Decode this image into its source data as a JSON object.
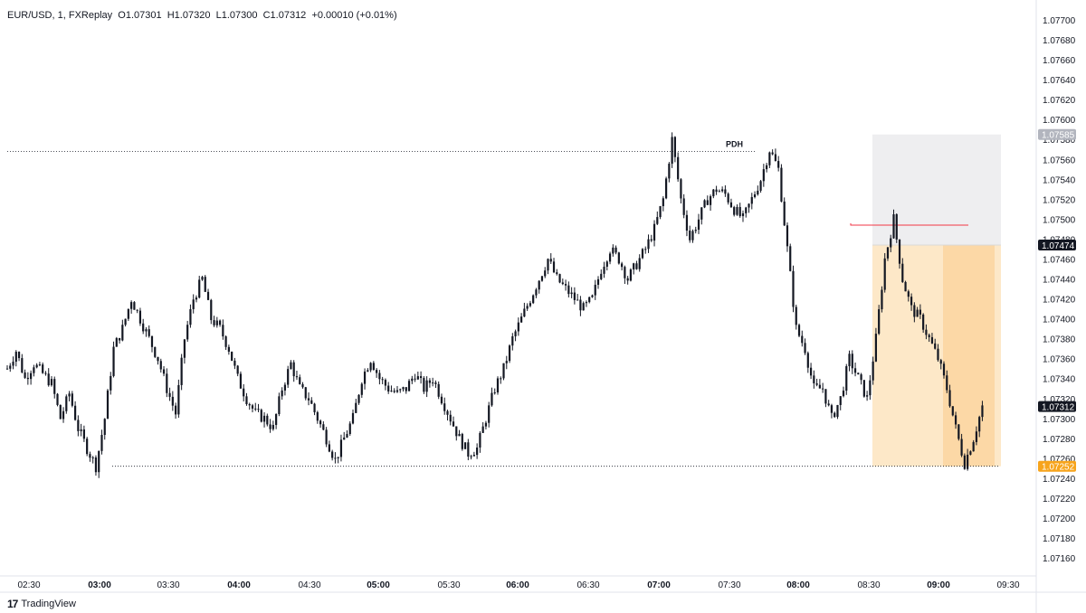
{
  "header": {
    "symbol": "EUR/USD, 1, FXReplay",
    "open": "O1.07301",
    "high": "H1.07320",
    "low": "L1.07300",
    "close": "C1.07312",
    "change": "+0.00010 (+0.01%)"
  },
  "footer": {
    "brand": "TradingView",
    "brand_icon": "tradingview-logo-icon"
  },
  "colors": {
    "candle": "#131722",
    "grid": "#e6e6e6",
    "stop_zone": "#eeeef0",
    "target_zone": "#fde8c8",
    "target_zone_dark": "#fcd8a6",
    "entry_line": "#f23645",
    "current_badge": "#131722",
    "low_badge": "#f7a41c",
    "high_badge": "#b2b5be"
  },
  "chart_data": {
    "type": "candlestick",
    "title": "EUR/USD, 1, FXReplay",
    "ylim": [
      1.0715,
      1.0771
    ],
    "y_ticks": [
      "1.07700",
      "1.07680",
      "1.07660",
      "1.07640",
      "1.07620",
      "1.07600",
      "1.07580",
      "1.07560",
      "1.07540",
      "1.07520",
      "1.07500",
      "1.07480",
      "1.07460",
      "1.07440",
      "1.07420",
      "1.07400",
      "1.07380",
      "1.07360",
      "1.07340",
      "1.07320",
      "1.07300",
      "1.07280",
      "1.07260",
      "1.07240",
      "1.07220",
      "1.07200",
      "1.07180",
      "1.07160"
    ],
    "x_ticks": [
      {
        "label": "02:30",
        "bold": false
      },
      {
        "label": "03:00",
        "bold": true
      },
      {
        "label": "03:30",
        "bold": false
      },
      {
        "label": "04:00",
        "bold": true
      },
      {
        "label": "04:30",
        "bold": false
      },
      {
        "label": "05:00",
        "bold": true
      },
      {
        "label": "05:30",
        "bold": false
      },
      {
        "label": "06:00",
        "bold": true
      },
      {
        "label": "06:30",
        "bold": false
      },
      {
        "label": "07:00",
        "bold": true
      },
      {
        "label": "07:30",
        "bold": false
      },
      {
        "label": "08:00",
        "bold": true
      },
      {
        "label": "08:30",
        "bold": false
      },
      {
        "label": "09:00",
        "bold": true
      },
      {
        "label": "09:30",
        "bold": false
      }
    ],
    "price_badges": [
      {
        "label": "1.07585",
        "value": 1.07585,
        "role": "high"
      },
      {
        "label": "1.07474",
        "value": 1.07474,
        "role": "current"
      },
      {
        "label": "1.07312",
        "value": 1.07312,
        "role": "current"
      },
      {
        "label": "1.07252",
        "value": 1.07252,
        "role": "low"
      }
    ],
    "annotations": {
      "pdh_label": "PDH",
      "pdh_price": 1.07568,
      "low_line_price": 1.07252,
      "entry_price": 1.07494,
      "zone_top": 1.07585,
      "zone_mid": 1.07474,
      "zone_bottom": 1.07252
    },
    "price_path": [
      [
        0,
        1.0735
      ],
      [
        3,
        1.07368
      ],
      [
        6,
        1.0734
      ],
      [
        9,
        1.07355
      ],
      [
        12,
        1.07345
      ],
      [
        15,
        1.07335
      ],
      [
        18,
        1.073
      ],
      [
        21,
        1.07325
      ],
      [
        24,
        1.0729
      ],
      [
        27,
        1.0727
      ],
      [
        30,
        1.07252
      ],
      [
        33,
        1.073
      ],
      [
        36,
        1.0737
      ],
      [
        39,
        1.0739
      ],
      [
        42,
        1.0742
      ],
      [
        45,
        1.074
      ],
      [
        48,
        1.0738
      ],
      [
        51,
        1.0736
      ],
      [
        54,
        1.0733
      ],
      [
        57,
        1.07305
      ],
      [
        60,
        1.0738
      ],
      [
        63,
        1.0742
      ],
      [
        66,
        1.0744
      ],
      [
        69,
        1.074
      ],
      [
        72,
        1.0739
      ],
      [
        75,
        1.0737
      ],
      [
        78,
        1.0734
      ],
      [
        81,
        1.0732
      ],
      [
        84,
        1.07305
      ],
      [
        87,
        1.073
      ],
      [
        90,
        1.0729
      ],
      [
        93,
        1.0733
      ],
      [
        96,
        1.07355
      ],
      [
        99,
        1.0733
      ],
      [
        102,
        1.0732
      ],
      [
        105,
        1.073
      ],
      [
        108,
        1.0728
      ],
      [
        111,
        1.07258
      ],
      [
        114,
        1.0728
      ],
      [
        117,
        1.073
      ],
      [
        120,
        1.0734
      ],
      [
        123,
        1.0736
      ],
      [
        126,
        1.0734
      ],
      [
        129,
        1.0733
      ],
      [
        132,
        1.07325
      ],
      [
        135,
        1.0733
      ],
      [
        138,
        1.07345
      ],
      [
        141,
        1.0733
      ],
      [
        144,
        1.0734
      ],
      [
        147,
        1.0732
      ],
      [
        150,
        1.073
      ],
      [
        153,
        1.0728
      ],
      [
        156,
        1.07265
      ],
      [
        159,
        1.0727
      ],
      [
        162,
        1.073
      ],
      [
        165,
        1.0733
      ],
      [
        168,
        1.0735
      ],
      [
        171,
        1.0738
      ],
      [
        174,
        1.074
      ],
      [
        177,
        1.0742
      ],
      [
        180,
        1.0744
      ],
      [
        183,
        1.0746
      ],
      [
        186,
        1.0744
      ],
      [
        189,
        1.0743
      ],
      [
        192,
        1.0742
      ],
      [
        195,
        1.0741
      ],
      [
        198,
        1.0742
      ],
      [
        201,
        1.0745
      ],
      [
        204,
        1.0747
      ],
      [
        207,
        1.0746
      ],
      [
        210,
        1.0744
      ],
      [
        213,
        1.07455
      ],
      [
        216,
        1.0747
      ],
      [
        219,
        1.0749
      ],
      [
        222,
        1.0752
      ],
      [
        225,
        1.0758
      ],
      [
        228,
        1.0752
      ],
      [
        231,
        1.0748
      ],
      [
        234,
        1.075
      ],
      [
        237,
        1.0752
      ],
      [
        240,
        1.0753
      ],
      [
        243,
        1.07525
      ],
      [
        246,
        1.0751
      ],
      [
        249,
        1.075
      ],
      [
        252,
        1.0752
      ],
      [
        255,
        1.0754
      ],
      [
        258,
        1.0757
      ],
      [
        261,
        1.0755
      ],
      [
        264,
        1.0747
      ],
      [
        267,
        1.0739
      ],
      [
        270,
        1.0737
      ],
      [
        273,
        1.0733
      ],
      [
        276,
        1.0733
      ],
      [
        279,
        1.073
      ],
      [
        282,
        1.0732
      ],
      [
        285,
        1.0736
      ],
      [
        288,
        1.0734
      ],
      [
        291,
        1.0732
      ],
      [
        294,
        1.0738
      ],
      [
        297,
        1.0746
      ],
      [
        300,
        1.075
      ],
      [
        303,
        1.0744
      ],
      [
        306,
        1.0741
      ],
      [
        309,
        1.074
      ],
      [
        312,
        1.0738
      ],
      [
        315,
        1.0736
      ],
      [
        318,
        1.0733
      ],
      [
        321,
        1.0729
      ],
      [
        324,
        1.07255
      ],
      [
        327,
        1.0728
      ],
      [
        330,
        1.07312
      ]
    ]
  }
}
